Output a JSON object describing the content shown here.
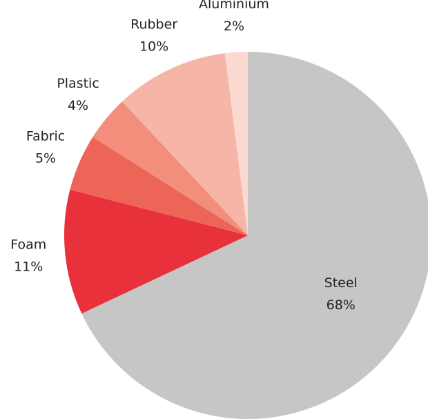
{
  "chart_data": {
    "type": "pie",
    "categories": [
      "Steel",
      "Foam",
      "Fabric",
      "Plastic",
      "Rubber",
      "Aluminium"
    ],
    "values": [
      68,
      11,
      5,
      4,
      10,
      2
    ],
    "value_labels": [
      "68%",
      "11%",
      "5%",
      "4%",
      "10%",
      "2%"
    ],
    "colors": [
      "#c6c6c6",
      "#e8313a",
      "#ec6556",
      "#f28e7b",
      "#f6b6a7",
      "#fbd9d0"
    ]
  }
}
